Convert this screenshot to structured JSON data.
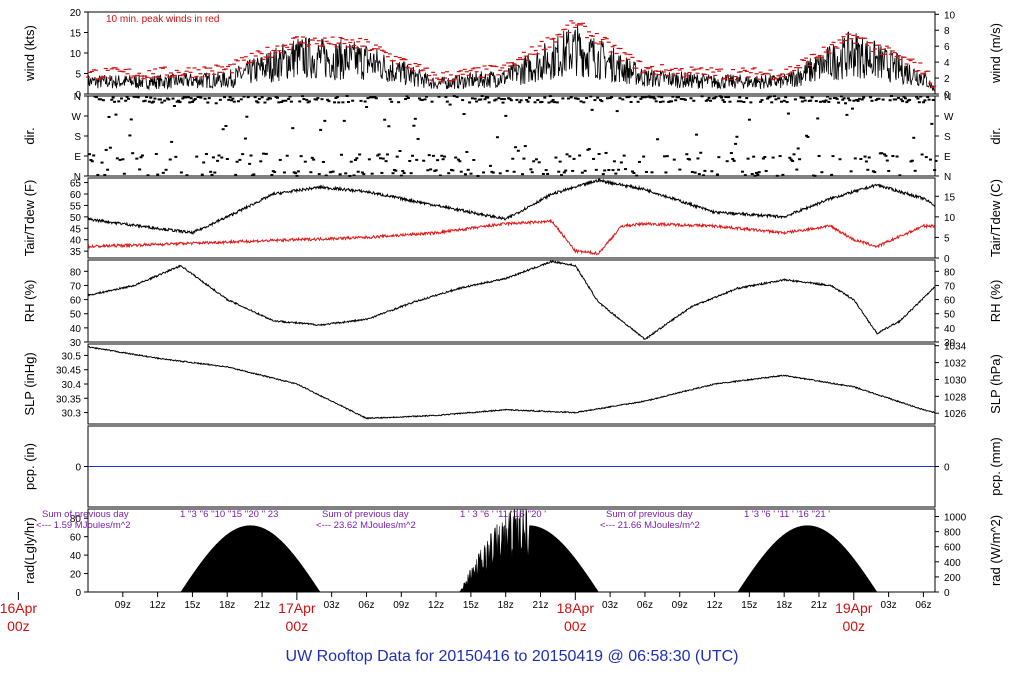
{
  "figure": {
    "title": "UW Rooftop Data for 20150416  to  20150419 @ 06:58:30  (UTC)",
    "colors": {
      "axis": "#000000",
      "trace": "#000000",
      "peak": "#d01010",
      "dewpoint": "#e01818",
      "precip": "#2233cc",
      "day_label": "#d01010",
      "solar_text": "#7a1fb0",
      "title": "#1f2fb5"
    }
  },
  "chart_data": {
    "type": "line",
    "x_axis": {
      "type": "time",
      "start": "2015-04-16 06:00 UTC",
      "end": "2015-04-19 07:00 UTC",
      "hour_ticks": [
        "09z",
        "12z",
        "15z",
        "18z",
        "21z",
        "03z",
        "06z",
        "09z",
        "12z",
        "15z",
        "18z",
        "21z",
        "03z",
        "06z",
        "09z",
        "12z",
        "15z",
        "18z",
        "21z",
        "03z",
        "06z"
      ],
      "hour_tick_hours": [
        3,
        6,
        9,
        12,
        15,
        21,
        24,
        27,
        30,
        33,
        36,
        39,
        45,
        48,
        51,
        54,
        57,
        60,
        63,
        69,
        72
      ],
      "day_markers": [
        {
          "hour": -6,
          "day": "16Apr",
          "time": "00z"
        },
        {
          "hour": 18,
          "day": "17Apr",
          "time": "00z"
        },
        {
          "hour": 42,
          "day": "18Apr",
          "time": "00z"
        },
        {
          "hour": 66,
          "day": "19Apr",
          "time": "00z"
        }
      ]
    },
    "panels": [
      {
        "id": "wind",
        "type": "line",
        "ylabel_left": "wind (kts)",
        "ylabel_right": "wind (m/s)",
        "ylim_left": [
          0,
          20
        ],
        "yticks_left": [
          0,
          5,
          10,
          15,
          20
        ],
        "yticks_right": [
          0,
          2,
          4,
          6,
          8,
          10
        ],
        "right_factor": 0.5144,
        "annotation": "10 min. peak winds in red",
        "series": [
          {
            "hours": [
              0,
              6,
              12,
              18,
              24,
              30,
              36,
              42,
              48,
              54,
              60,
              66,
              72,
              73
            ],
            "values": [
              3,
              3,
              3.5,
              9,
              8,
              2.5,
              4,
              11,
              4,
              3,
              3,
              10,
              4,
              1
            ]
          },
          {
            "hours": [
              0,
              6,
              12,
              18,
              24,
              30,
              36,
              42,
              48,
              54,
              60,
              66,
              72,
              73
            ],
            "values": [
              5,
              5,
              6,
              13,
              12,
              4,
              6,
              17,
              6,
              5,
              5,
              14,
              6,
              2
            ]
          }
        ]
      },
      {
        "id": "dir",
        "type": "scatter",
        "ylabel_left": "dir.",
        "ylabel_right": "dir.",
        "ylim_left": [
          0,
          360
        ],
        "yticks_left": [
          "N",
          "E",
          "S",
          "W",
          "N"
        ],
        "yticks_right": [
          "N",
          "E",
          "S",
          "W",
          "N"
        ]
      },
      {
        "id": "temp",
        "type": "line",
        "ylabel_left": "Tair/Tdew (F)",
        "ylabel_right": "Tair/Tdew (C)",
        "ylim_left": [
          32,
          67
        ],
        "yticks_left": [
          35,
          40,
          45,
          50,
          55,
          60,
          65
        ],
        "yticks_right": [
          0,
          5,
          10,
          15
        ],
        "series": [
          {
            "name": "",
            "hours": [
              0,
              6,
              9,
              12,
              16,
              20,
              24,
              30,
              36,
              40,
              44,
              48,
              54,
              60,
              64,
              68,
              72,
              73
            ],
            "values": [
              49,
              45,
              43,
              50,
              60,
              63,
              61,
              55,
              49,
              60,
              66,
              62,
              52,
              50,
              58,
              64,
              58,
              55
            ]
          },
          {
            "name": "",
            "hours": [
              0,
              6,
              12,
              18,
              24,
              30,
              36,
              40,
              42,
              44,
              46,
              48,
              54,
              60,
              64,
              66,
              68,
              72,
              73
            ],
            "values": [
              37,
              38,
              39,
              40,
              41,
              43,
              47,
              48,
              35,
              34,
              46,
              47,
              46,
              43,
              46,
              40,
              37,
              46,
              46
            ]
          }
        ]
      },
      {
        "id": "rh",
        "type": "line",
        "ylabel_left": "RH (%)",
        "ylabel_right": "RH (%)",
        "ylim_left": [
          30,
          88
        ],
        "yticks_left": [
          30,
          40,
          50,
          60,
          70,
          80
        ],
        "series": [
          {
            "hours": [
              0,
              4,
              8,
              12,
              16,
              20,
              24,
              28,
              32,
              36,
              40,
              42,
              44,
              48,
              52,
              56,
              60,
              64,
              66,
              68,
              70,
              73
            ],
            "values": [
              63,
              70,
              84,
              60,
              45,
              42,
              46,
              58,
              68,
              75,
              87,
              84,
              58,
              32,
              55,
              68,
              74,
              70,
              60,
              36,
              45,
              69
            ]
          }
        ]
      },
      {
        "id": "slp",
        "type": "line",
        "ylabel_left": "SLP (inHg)",
        "ylabel_right": "SLP (hPa)",
        "ylim_left": [
          30.26,
          30.54
        ],
        "yticks_left": [
          30.3,
          30.35,
          30.4,
          30.45,
          30.5
        ],
        "yticks_right": [
          1026,
          1028,
          1030,
          1032,
          1034
        ],
        "series": [
          {
            "hours": [
              0,
              6,
              12,
              18,
              24,
              30,
              36,
              42,
              48,
              54,
              60,
              66,
              72,
              73
            ],
            "values": [
              30.53,
              30.49,
              30.46,
              30.4,
              30.28,
              30.29,
              30.31,
              30.3,
              30.34,
              30.4,
              30.43,
              30.39,
              30.31,
              30.3
            ]
          }
        ]
      },
      {
        "id": "pcp",
        "type": "line",
        "ylabel_left": "pcp. (in)",
        "ylabel_right": "pcp. (mm)",
        "ylim_left": [
          -0.5,
          0.5
        ],
        "yticks_left": [
          0
        ],
        "yticks_right": [
          0
        ],
        "series": [
          {
            "hours": [
              0,
              73
            ],
            "values": [
              0,
              0
            ]
          }
        ]
      },
      {
        "id": "rad",
        "type": "area",
        "ylabel_left": "rad(Lgly/hr)",
        "ylabel_right": "rad (W/m^2)",
        "ylim_left": [
          0,
          90
        ],
        "yticks_left": [
          0,
          20,
          40,
          60,
          80
        ],
        "yticks_right": [
          0,
          200,
          400,
          600,
          800,
          1000
        ],
        "series": [
          {
            "hours": [
              8,
              14,
              20,
              26,
              32,
              38,
              44,
              50,
              56,
              62,
              68,
              74
            ],
            "values": [
              0,
              73,
              0,
              0,
              60,
              75,
              0,
              0,
              0,
              73,
              0,
              0
            ]
          }
        ],
        "daily_sums": [
          {
            "title": "Sum of previous day",
            "value": "<--- 1.59 MJoules/m^2",
            "hour_labels": "1 ''3 ''6 ''10 ''15 ''20 '' 23"
          },
          {
            "title": "Sum of previous day",
            "value": "<--- 23.62 MJoules/m^2",
            "hour_labels": "1 ' 3 ''6 ' '11 ''16 ''20 '"
          },
          {
            "title": "Sum of previous day",
            "value": "<--- 21.66 MJoules/m^2",
            "hour_labels": "1 '3 ''6 ' '11 ' '16 ''21 '"
          }
        ]
      }
    ]
  }
}
